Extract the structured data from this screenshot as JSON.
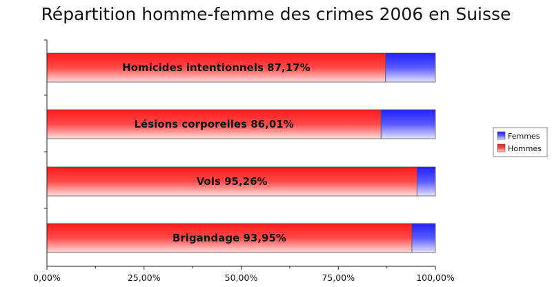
{
  "chart_data": {
    "type": "bar",
    "orientation": "horizontal",
    "stacked": true,
    "title": "Répartition homme-femme des crimes 2006 en Suisse",
    "categories": [
      "Homicides intentionnels",
      "Lésions corporelles",
      "Vols",
      "Brigandage"
    ],
    "bar_labels": [
      "Homicides intentionnels 87,17%",
      "Lésions corporelles 86,01%",
      "Vols 95,26%",
      "Brigandage 93,95%"
    ],
    "series": [
      {
        "name": "Hommes",
        "values": [
          87.17,
          86.01,
          95.26,
          93.95
        ],
        "color": "#ff2a2a"
      },
      {
        "name": "Femmes",
        "values": [
          12.83,
          13.99,
          4.74,
          6.05
        ],
        "color": "#3a3aff"
      }
    ],
    "xlim": [
      0,
      100
    ],
    "x_ticks": [
      "0,00%",
      "25,00%",
      "50,00%",
      "75,00%",
      "100,00%"
    ],
    "legend": {
      "position": "right",
      "order": [
        "Femmes",
        "Hommes"
      ]
    },
    "grid": false
  }
}
